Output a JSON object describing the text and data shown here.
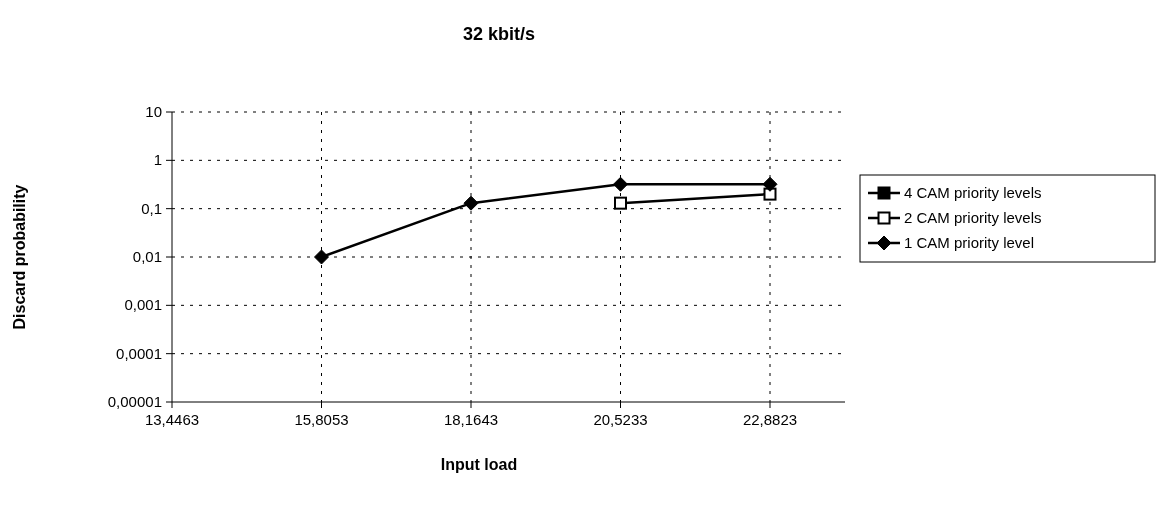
{
  "chart_data": {
    "type": "line",
    "title": "32 kbit/s",
    "xlabel": "Input load",
    "ylabel": "Discard probability",
    "categories": [
      "13,4463",
      "15,8053",
      "18,1643",
      "20,5233",
      "22,8823"
    ],
    "series": [
      {
        "name": "4 CAM priority levels",
        "color": "#000000",
        "marker": "square",
        "values": [
          null,
          null,
          null,
          null,
          null
        ]
      },
      {
        "name": "2 CAM priority levels",
        "color": "#000000",
        "marker": "square",
        "values": [
          null,
          null,
          null,
          0.13,
          0.2
        ]
      },
      {
        "name": "1 CAM priority level",
        "color": "#000000",
        "marker": "diamond",
        "values": [
          null,
          0.01,
          0.13,
          0.32,
          0.32
        ]
      }
    ],
    "log": "y",
    "ylim": [
      1e-05,
      10
    ],
    "yticks": [
      {
        "value": 1e-05,
        "label": "0,00001"
      },
      {
        "value": 0.0001,
        "label": "0,0001"
      },
      {
        "value": 0.001,
        "label": "0,001"
      },
      {
        "value": 0.01,
        "label": "0,01"
      },
      {
        "value": 0.1,
        "label": "0,1"
      },
      1,
      10
    ],
    "grid": true,
    "legend": "right",
    "line_style": "solid"
  }
}
